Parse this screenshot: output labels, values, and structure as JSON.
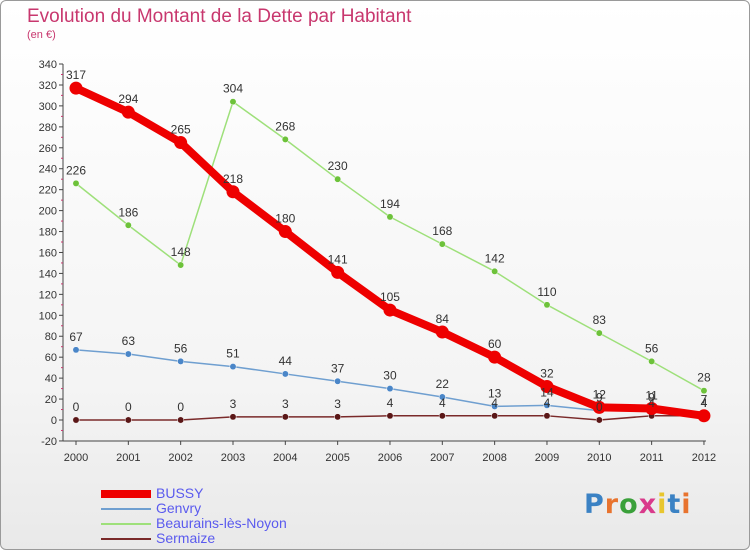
{
  "title": "Evolution du Montant de la Dette par Habitant",
  "unit": "(en €)",
  "brand": "Proxiti",
  "brand_colors": [
    "#3b82c4",
    "#e8732e",
    "#3aa03a",
    "#d93a8b",
    "#e8c62e",
    "#3b82c4",
    "#e8732e"
  ],
  "chart_data": {
    "type": "line",
    "x": [
      "2000",
      "2001",
      "2002",
      "2003",
      "2004",
      "2005",
      "2006",
      "2007",
      "2008",
      "2009",
      "2010",
      "2011",
      "2012"
    ],
    "ylim": [
      -20,
      340
    ],
    "yticks": [
      -20,
      0,
      20,
      40,
      60,
      80,
      100,
      120,
      140,
      160,
      180,
      200,
      220,
      240,
      260,
      280,
      300,
      320,
      340
    ],
    "grid": false,
    "legend_position": "bottom-left",
    "series": [
      {
        "name": "Sermaize",
        "color": "#7a2a2a",
        "marker": "#5a1616",
        "values": [
          0,
          0,
          0,
          3,
          3,
          3,
          4,
          4,
          4,
          4,
          0,
          4,
          4
        ],
        "labels": [
          "0",
          "0",
          "0",
          "3",
          "3",
          "3",
          "4",
          "4",
          "4",
          "4",
          "0",
          "4",
          "4"
        ]
      },
      {
        "name": "Beaurains-lès-Noyon",
        "color": "#9ee07a",
        "marker": "#6dc23a",
        "values": [
          226,
          186,
          148,
          304,
          268,
          230,
          194,
          168,
          142,
          110,
          83,
          56,
          28
        ],
        "labels": [
          "226",
          "186",
          "148",
          "304",
          "268",
          "230",
          "194",
          "168",
          "142",
          "110",
          "83",
          "56",
          "28"
        ]
      },
      {
        "name": "Genvry",
        "color": "#6f9fd0",
        "marker": "#4a86c8",
        "values": [
          67,
          63,
          56,
          51,
          44,
          37,
          30,
          22,
          13,
          14,
          9,
          9,
          7
        ],
        "labels": [
          "67",
          "63",
          "56",
          "51",
          "44",
          "37",
          "30",
          "22",
          "13",
          "14",
          "9",
          "9",
          "7"
        ]
      },
      {
        "name": "BUSSY",
        "color": "#ee0000",
        "marker": "#ee0000",
        "values": [
          317,
          294,
          265,
          218,
          180,
          141,
          105,
          84,
          60,
          32,
          12,
          11,
          4
        ],
        "labels": [
          "317",
          "294",
          "265",
          "218",
          "180",
          "141",
          "105",
          "84",
          "60",
          "32",
          "12",
          "11",
          "4"
        ]
      }
    ],
    "legend": [
      {
        "name": "BUSSY",
        "color": "#ee0000",
        "text_color": "#5a5aee"
      },
      {
        "name": "Genvry",
        "color": "#6f9fd0",
        "text_color": "#5a5aee"
      },
      {
        "name": "Beaurains-lès-Noyon",
        "color": "#9ee07a",
        "text_color": "#5a5aee"
      },
      {
        "name": "Sermaize",
        "color": "#7a2a2a",
        "text_color": "#5a5aee"
      }
    ]
  }
}
